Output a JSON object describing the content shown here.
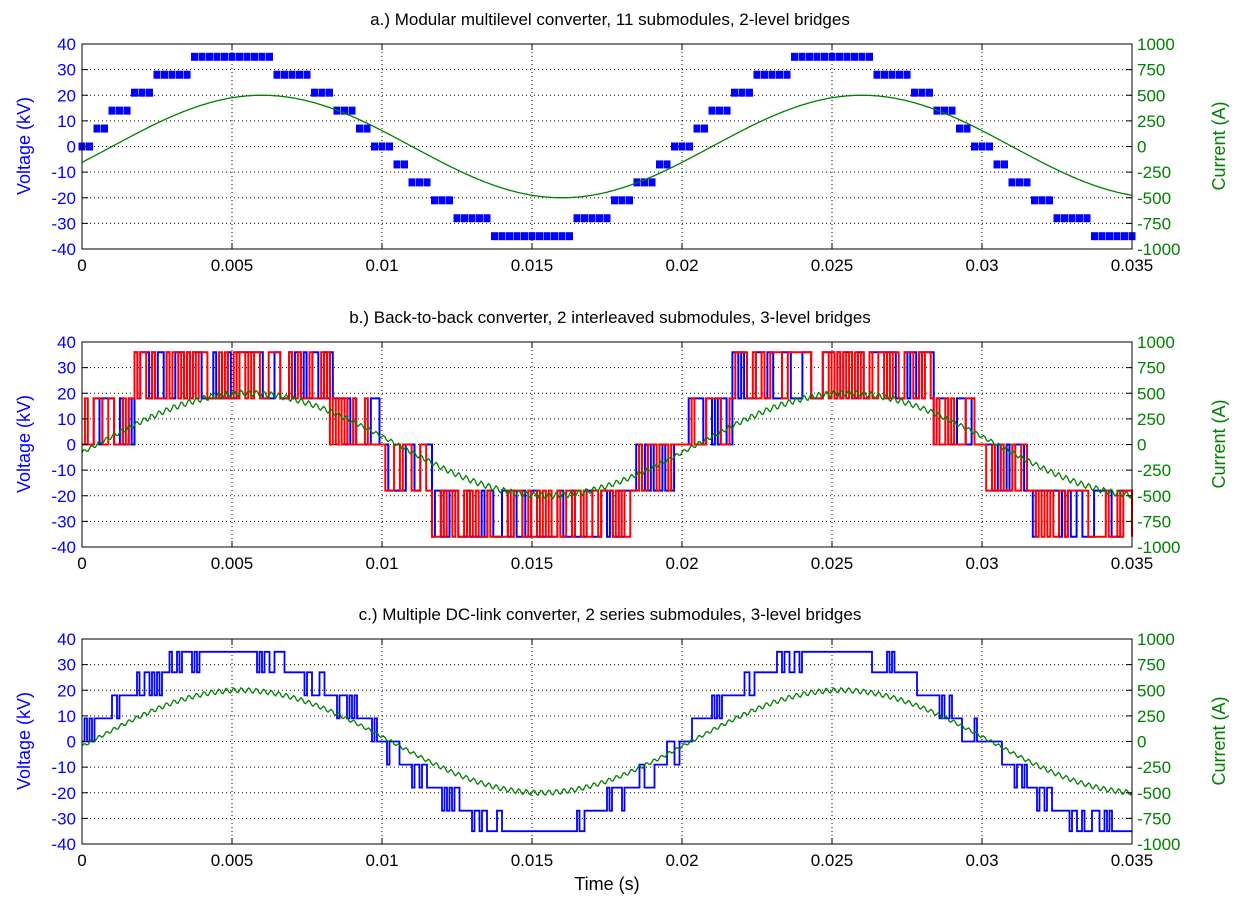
{
  "chart_data": [
    {
      "type": "line",
      "title": "a.) Modular multilevel converter, 11 submodules, 2-level bridges",
      "xlabel": "",
      "ylabel": "Voltage (kV)",
      "y2label": "Current (A)",
      "xlim": [
        0,
        0.035
      ],
      "ylim": [
        -40,
        40
      ],
      "y2lim": [
        -1000,
        1000
      ],
      "xticks": [
        "0",
        "0.005",
        "0.01",
        "0.015",
        "0.02",
        "0.025",
        "0.03",
        "0.035"
      ],
      "yticks": [
        "40",
        "30",
        "20",
        "10",
        "0",
        "-10",
        "-20",
        "-30",
        "-40"
      ],
      "y2ticks": [
        "1000",
        "750",
        "500",
        "250",
        "0",
        "-250",
        "-500",
        "-750",
        "-1000"
      ],
      "grid": true,
      "colors": {
        "voltage": "#0000ff",
        "voltage_alt": "#ff0000",
        "current": "#008000"
      },
      "series": [
        {
          "axis": "left",
          "kind": "staircase",
          "amplitude": 35,
          "period": 0.02,
          "levels": 11,
          "style": "markers"
        },
        {
          "axis": "right",
          "kind": "sine",
          "amplitude": 500,
          "period": 0.02,
          "phase_delay": 0.001,
          "ripple": 0
        }
      ]
    },
    {
      "type": "line",
      "title": "b.) Back-to-back converter, 2 interleaved submodules, 3-level bridges",
      "xlabel": "",
      "ylabel": "Voltage (kV)",
      "y2label": "Current (A)",
      "xlim": [
        0,
        0.035
      ],
      "ylim": [
        -40,
        40
      ],
      "y2lim": [
        -1000,
        1000
      ],
      "xticks": [
        "0",
        "0.005",
        "0.01",
        "0.015",
        "0.02",
        "0.025",
        "0.03",
        "0.035"
      ],
      "yticks": [
        "40",
        "30",
        "20",
        "10",
        "0",
        "-10",
        "-20",
        "-30",
        "-40"
      ],
      "y2ticks": [
        "1000",
        "750",
        "500",
        "250",
        "0",
        "-250",
        "-500",
        "-750",
        "-1000"
      ],
      "grid": true,
      "colors": {
        "voltage": "#0000ff",
        "voltage_alt": "#ff0000",
        "current": "#008000"
      },
      "series": [
        {
          "axis": "left",
          "kind": "pwm-interleaved",
          "levels_kv": [
            -36,
            -18,
            0,
            18,
            36
          ],
          "period": 0.02
        },
        {
          "axis": "right",
          "kind": "sine",
          "amplitude": 500,
          "period": 0.02,
          "phase_delay": 0.0005,
          "ripple": 30
        }
      ]
    },
    {
      "type": "line",
      "title": "c.) Multiple DC-link converter, 2 series submodules, 3-level bridges",
      "xlabel": "Time (s)",
      "ylabel": "Voltage (kV)",
      "y2label": "Current (A)",
      "xlim": [
        0,
        0.035
      ],
      "ylim": [
        -40,
        40
      ],
      "y2lim": [
        -1000,
        1000
      ],
      "xticks": [
        "0",
        "0.005",
        "0.01",
        "0.015",
        "0.02",
        "0.025",
        "0.03",
        "0.035"
      ],
      "yticks": [
        "40",
        "30",
        "20",
        "10",
        "0",
        "-10",
        "-20",
        "-30",
        "-40"
      ],
      "y2ticks": [
        "1000",
        "750",
        "500",
        "250",
        "0",
        "-250",
        "-500",
        "-750",
        "-1000"
      ],
      "grid": true,
      "colors": {
        "voltage": "#0000ff",
        "voltage_alt": "#ff0000",
        "current": "#008000"
      },
      "series": [
        {
          "axis": "left",
          "kind": "pwm-multilevel",
          "levels_kv": [
            -35,
            -27,
            -18,
            -9,
            0,
            9,
            18,
            27,
            35
          ],
          "period": 0.02
        },
        {
          "axis": "right",
          "kind": "sine",
          "amplitude": 500,
          "period": 0.02,
          "phase_delay": 0.0003,
          "ripple": 25
        }
      ]
    }
  ]
}
